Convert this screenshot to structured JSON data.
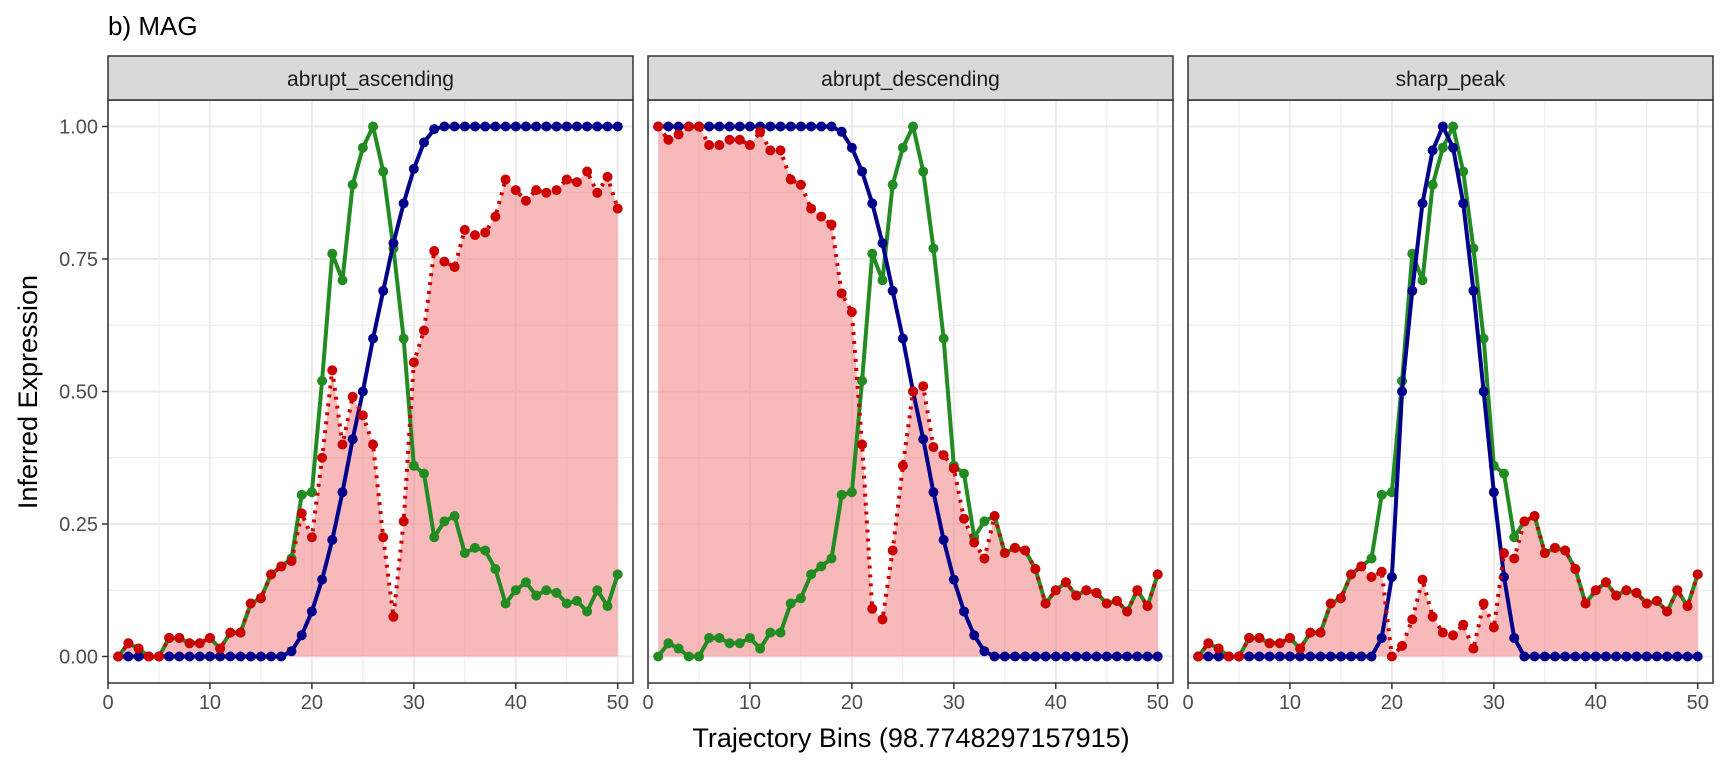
{
  "chart_data": {
    "type": "line",
    "title": "b) MAG",
    "xlabel": "Trajectory Bins (98.7748297157915)",
    "ylabel": "Inferred Expression",
    "xlim": [
      0,
      51.5
    ],
    "ylim": [
      -0.05,
      1.05
    ],
    "x_ticks": [
      0,
      10,
      20,
      30,
      40,
      50
    ],
    "x_tick_labels": [
      "0",
      "10",
      "20",
      "30",
      "40",
      "50"
    ],
    "y_ticks": [
      0,
      0.25,
      0.5,
      0.75,
      1.0
    ],
    "y_tick_labels": [
      "0.00",
      "0.25",
      "0.50",
      "0.75",
      "1.00"
    ],
    "grid": true,
    "colors": {
      "green": "#228B22",
      "blue": "#00008B",
      "red": "#CC0000",
      "fill": "#F08080",
      "strip": "#D9D9D9",
      "grid": "#EBEBEB",
      "border": "#333333"
    },
    "green_series": [
      0.0,
      0.025,
      0.015,
      0.0,
      0.0,
      0.035,
      0.035,
      0.025,
      0.025,
      0.035,
      0.015,
      0.045,
      0.045,
      0.1,
      0.11,
      0.155,
      0.17,
      0.185,
      0.305,
      0.31,
      0.52,
      0.76,
      0.71,
      0.89,
      0.96,
      1.0,
      0.915,
      0.77,
      0.6,
      0.36,
      0.345,
      0.225,
      0.255,
      0.265,
      0.195,
      0.205,
      0.2,
      0.165,
      0.1,
      0.125,
      0.14,
      0.115,
      0.125,
      0.12,
      0.1,
      0.105,
      0.085,
      0.125,
      0.095,
      0.155
    ],
    "panels": [
      {
        "name": "abrupt_ascending",
        "blue": [
          0,
          0,
          0,
          0,
          0,
          0,
          0,
          0,
          0,
          0,
          0,
          0,
          0,
          0,
          0,
          0,
          0,
          0.01,
          0.04,
          0.085,
          0.145,
          0.22,
          0.31,
          0.41,
          0.5,
          0.6,
          0.69,
          0.78,
          0.855,
          0.92,
          0.97,
          0.995,
          1.0,
          1.0,
          1.0,
          1.0,
          1.0,
          1.0,
          1.0,
          1.0,
          1.0,
          1.0,
          1.0,
          1.0,
          1.0,
          1.0,
          1.0,
          1.0,
          1.0,
          1.0
        ],
        "red": [
          0.0,
          0.025,
          0.015,
          0.0,
          0.0,
          0.035,
          0.035,
          0.025,
          0.025,
          0.035,
          0.015,
          0.045,
          0.045,
          0.1,
          0.11,
          0.155,
          0.17,
          0.18,
          0.27,
          0.225,
          0.375,
          0.54,
          0.4,
          0.49,
          0.455,
          0.4,
          0.225,
          0.075,
          0.255,
          0.555,
          0.615,
          0.765,
          0.745,
          0.735,
          0.805,
          0.795,
          0.8,
          0.83,
          0.9,
          0.88,
          0.86,
          0.88,
          0.875,
          0.88,
          0.9,
          0.895,
          0.915,
          0.875,
          0.905,
          0.845
        ]
      },
      {
        "name": "abrupt_descending",
        "blue": [
          1.0,
          1.0,
          1.0,
          1.0,
          1.0,
          1.0,
          1.0,
          1.0,
          1.0,
          1.0,
          1.0,
          1.0,
          1.0,
          1.0,
          1.0,
          1.0,
          1.0,
          1.0,
          0.99,
          0.96,
          0.915,
          0.855,
          0.78,
          0.69,
          0.6,
          0.5,
          0.41,
          0.31,
          0.22,
          0.145,
          0.085,
          0.04,
          0.01,
          0,
          0,
          0,
          0,
          0,
          0,
          0,
          0,
          0,
          0,
          0,
          0,
          0,
          0,
          0,
          0,
          0
        ],
        "red": [
          1.0,
          0.975,
          0.985,
          1.0,
          1.0,
          0.965,
          0.965,
          0.975,
          0.975,
          0.965,
          0.99,
          0.955,
          0.955,
          0.9,
          0.89,
          0.845,
          0.83,
          0.815,
          0.685,
          0.65,
          0.4,
          0.09,
          0.07,
          0.2,
          0.36,
          0.5,
          0.51,
          0.395,
          0.38,
          0.355,
          0.26,
          0.215,
          0.185,
          0.265,
          0.195,
          0.205,
          0.2,
          0.165,
          0.1,
          0.125,
          0.14,
          0.115,
          0.125,
          0.12,
          0.1,
          0.105,
          0.085,
          0.125,
          0.095,
          0.155
        ]
      },
      {
        "name": "sharp_peak",
        "blue": [
          0,
          0,
          0,
          0,
          0,
          0,
          0,
          0,
          0,
          0,
          0,
          0,
          0,
          0,
          0,
          0,
          0,
          0,
          0.035,
          0.15,
          0.5,
          0.69,
          0.855,
          0.955,
          1.0,
          0.96,
          0.855,
          0.69,
          0.5,
          0.31,
          0.15,
          0.035,
          0,
          0,
          0,
          0,
          0,
          0,
          0,
          0,
          0,
          0,
          0,
          0,
          0,
          0,
          0,
          0,
          0,
          0
        ],
        "red": [
          0.0,
          0.025,
          0.015,
          0.0,
          0.0,
          0.035,
          0.035,
          0.025,
          0.025,
          0.035,
          0.015,
          0.045,
          0.045,
          0.1,
          0.11,
          0.155,
          0.17,
          0.15,
          0.16,
          0.0,
          0.02,
          0.07,
          0.145,
          0.075,
          0.045,
          0.04,
          0.06,
          0.015,
          0.1,
          0.055,
          0.195,
          0.185,
          0.255,
          0.265,
          0.195,
          0.205,
          0.2,
          0.165,
          0.1,
          0.125,
          0.14,
          0.115,
          0.125,
          0.12,
          0.1,
          0.105,
          0.085,
          0.125,
          0.095,
          0.155
        ]
      }
    ]
  }
}
